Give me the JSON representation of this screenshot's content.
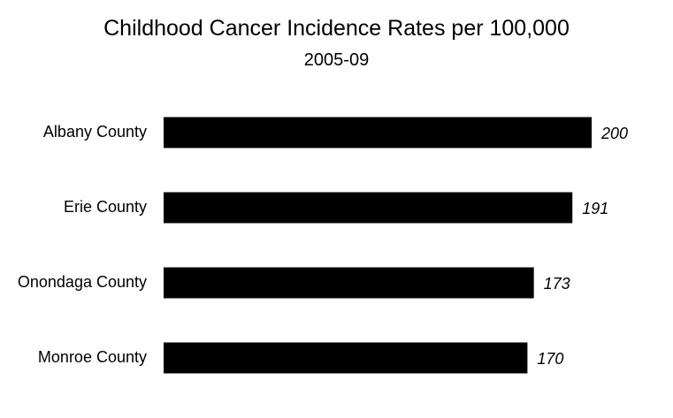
{
  "chart_data": {
    "type": "bar",
    "orientation": "horizontal",
    "title": "Childhood Cancer Incidence Rates per 100,000",
    "subtitle": "2005-09",
    "categories": [
      "Albany County",
      "Erie County",
      "Onondaga County",
      "Monroe County"
    ],
    "values": [
      200,
      191,
      173,
      170
    ],
    "data_labels": [
      "200",
      "191",
      "173",
      "170"
    ],
    "xlim": [
      0,
      200
    ],
    "xlabel": "",
    "ylabel": "",
    "grid": false,
    "legend": "none",
    "bar_color": "#000000"
  }
}
